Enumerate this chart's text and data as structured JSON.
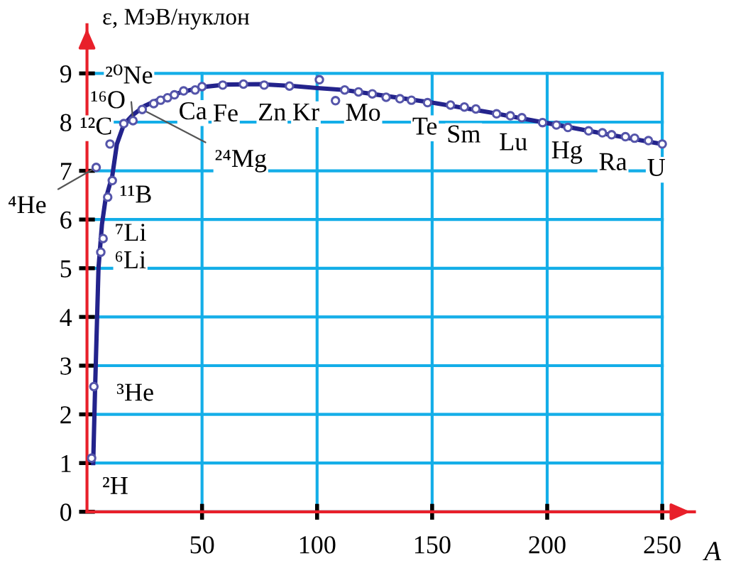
{
  "chart_data": {
    "type": "line",
    "xlabel": "A",
    "ylabel": "ε, МэВ/нуклон",
    "xlim": [
      0,
      264
    ],
    "ylim": [
      0,
      10
    ],
    "xticks": [
      50,
      100,
      150,
      200,
      250
    ],
    "yticks": [
      0,
      1,
      2,
      3,
      4,
      5,
      6,
      7,
      8,
      9
    ],
    "grid": true,
    "line_style": "solid",
    "series": [
      {
        "type": "line",
        "color": "#23238c",
        "x": [
          2.7,
          3.5,
          5,
          6.5,
          8,
          11,
          13,
          16,
          20,
          25,
          30,
          40,
          50,
          60,
          75,
          90,
          100,
          112,
          125,
          150,
          175,
          200,
          225,
          250
        ],
        "values": [
          1.0,
          2.5,
          5.0,
          5.9,
          6.4,
          6.9,
          7.55,
          7.95,
          8.15,
          8.33,
          8.44,
          8.6,
          8.72,
          8.77,
          8.78,
          8.74,
          8.7,
          8.66,
          8.57,
          8.4,
          8.2,
          7.98,
          7.76,
          7.55
        ]
      },
      {
        "type": "scatter",
        "marker": "circle",
        "color": "#5555aa",
        "x": [
          2,
          3,
          4,
          6,
          7,
          9,
          11,
          10,
          16,
          20,
          24,
          29,
          32,
          35,
          38,
          42,
          47,
          50,
          59,
          68,
          77,
          88,
          101,
          108,
          112,
          118,
          124,
          130,
          136,
          141,
          148,
          158,
          164,
          169,
          178,
          184,
          189,
          198,
          204,
          209,
          218,
          224,
          228,
          234,
          238,
          244,
          250
        ],
        "values": [
          1.1,
          2.57,
          7.07,
          5.33,
          5.61,
          6.46,
          6.8,
          7.55,
          7.97,
          8.03,
          8.26,
          8.38,
          8.45,
          8.5,
          8.56,
          8.64,
          8.66,
          8.73,
          8.76,
          8.78,
          8.76,
          8.74,
          8.87,
          8.44,
          8.66,
          8.62,
          8.58,
          8.51,
          8.48,
          8.45,
          8.4,
          8.35,
          8.31,
          8.27,
          8.17,
          8.13,
          8.09,
          7.99,
          7.94,
          7.89,
          7.82,
          7.78,
          7.74,
          7.7,
          7.67,
          7.62,
          7.55
        ]
      }
    ],
    "annotations": [
      {
        "text": "²H",
        "x": 2,
        "y": 1.1
      },
      {
        "text": "³He",
        "x": 3,
        "y": 2.57
      },
      {
        "text": "⁴He",
        "x": 4,
        "y": 7.07
      },
      {
        "text": "⁶Li",
        "x": 6,
        "y": 5.33
      },
      {
        "text": "⁷Li",
        "x": 7,
        "y": 5.61
      },
      {
        "text": "¹¹B",
        "x": 11,
        "y": 6.8
      },
      {
        "text": "¹²C",
        "x": 10,
        "y": 7.55
      },
      {
        "text": "¹⁶O",
        "x": 16,
        "y": 7.97
      },
      {
        "text": "²⁰Ne",
        "x": 20,
        "y": 8.03
      },
      {
        "text": "²⁴Mg",
        "x": 24,
        "y": 8.26
      },
      {
        "text": "Ca",
        "x": 40,
        "y": 8.55
      },
      {
        "text": "Fe",
        "x": 56,
        "y": 8.75
      },
      {
        "text": "Zn",
        "x": 65,
        "y": 8.77
      },
      {
        "text": "Kr",
        "x": 84,
        "y": 8.77
      },
      {
        "text": "Mo",
        "x": 108,
        "y": 8.44
      },
      {
        "text": "Te",
        "x": 128,
        "y": 8.52
      },
      {
        "text": "Sm",
        "x": 150,
        "y": 8.4
      },
      {
        "text": "Lu",
        "x": 175,
        "y": 8.2
      },
      {
        "text": "Hg",
        "x": 200,
        "y": 7.99
      },
      {
        "text": "Ra",
        "x": 226,
        "y": 7.75
      },
      {
        "text": "U",
        "x": 238,
        "y": 7.67
      }
    ]
  }
}
